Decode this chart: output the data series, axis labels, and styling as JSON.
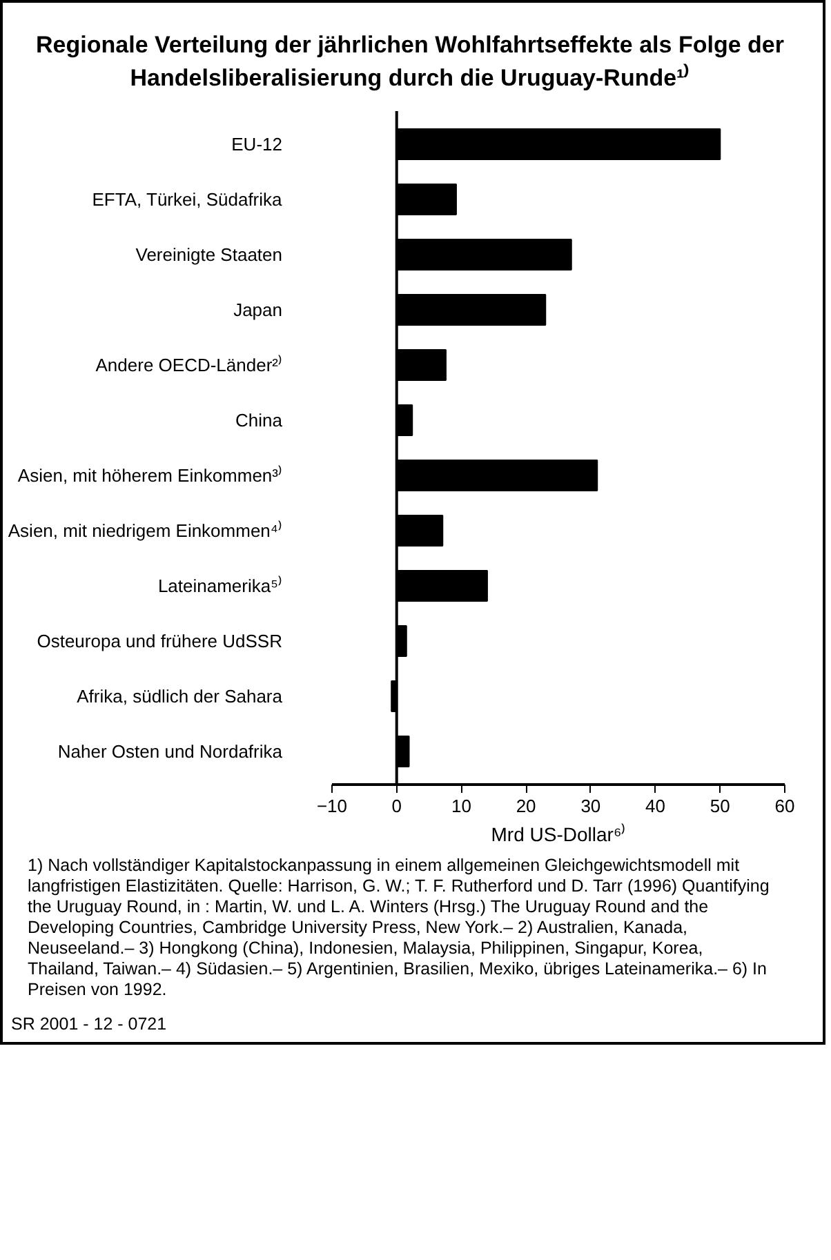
{
  "chart_data": {
    "type": "bar",
    "orientation": "horizontal",
    "title": "Regionale Verteilung der jährlichen Wohlfahrtseffekte als Folge der Handelsliberalisierung durch die Uruguay-Runde¹⁾",
    "categories": [
      "EU-12",
      "EFTA, Türkei, Südafrika",
      "Vereinigte Staaten",
      "Japan",
      "Andere OECD-Länder²⁾",
      "China",
      "Asien, mit höherem Einkommen³⁾",
      "Asien, mit niedrigem Einkommen⁴⁾",
      "Lateinamerika⁵⁾",
      "Osteuropa und frühere UdSSR",
      "Afrika, südlich der Sahara",
      "Naher Osten und Nordafrika"
    ],
    "values": [
      50,
      9.2,
      27,
      23,
      7.6,
      2.4,
      31,
      7.1,
      14,
      1.5,
      -0.8,
      1.9
    ],
    "color": "#000000",
    "xlim": [
      -10,
      60
    ],
    "xticks": [
      -10,
      0,
      10,
      20,
      30,
      40,
      50,
      60
    ],
    "xlabel": "Mrd US-Dollar⁶⁾",
    "ref_lines": [
      {
        "axis": "x",
        "value": 0,
        "color": "#000000"
      }
    ],
    "annotations": [
      "1) Nach vollständiger Kapitalstockanpassung in einem allgemeinen Gleichgewichtsmodell mit langfristigen Elastizitäten. Quelle: Harrison, G. W.; T. F. Rutherford und D. Tarr (1996) Quantifying the Uruguay Round, in : Martin, W. und L. A. Winters (Hrsg.) The Uruguay Round and the Developing Countries, Cambridge University Press, New York.– 2) Australien, Kanada, Neuseeland.– 3) Hongkong (China), Indonesien, Malaysia, Philippinen, Singapur, Korea, Thailand, Taiwan.– 4) Südasien.– 5) Argentinien, Brasilien, Mexiko, übriges Lateinamerika.– 6) In Preisen von 1992.",
      "SR 2001 - 12 - 0721"
    ]
  }
}
